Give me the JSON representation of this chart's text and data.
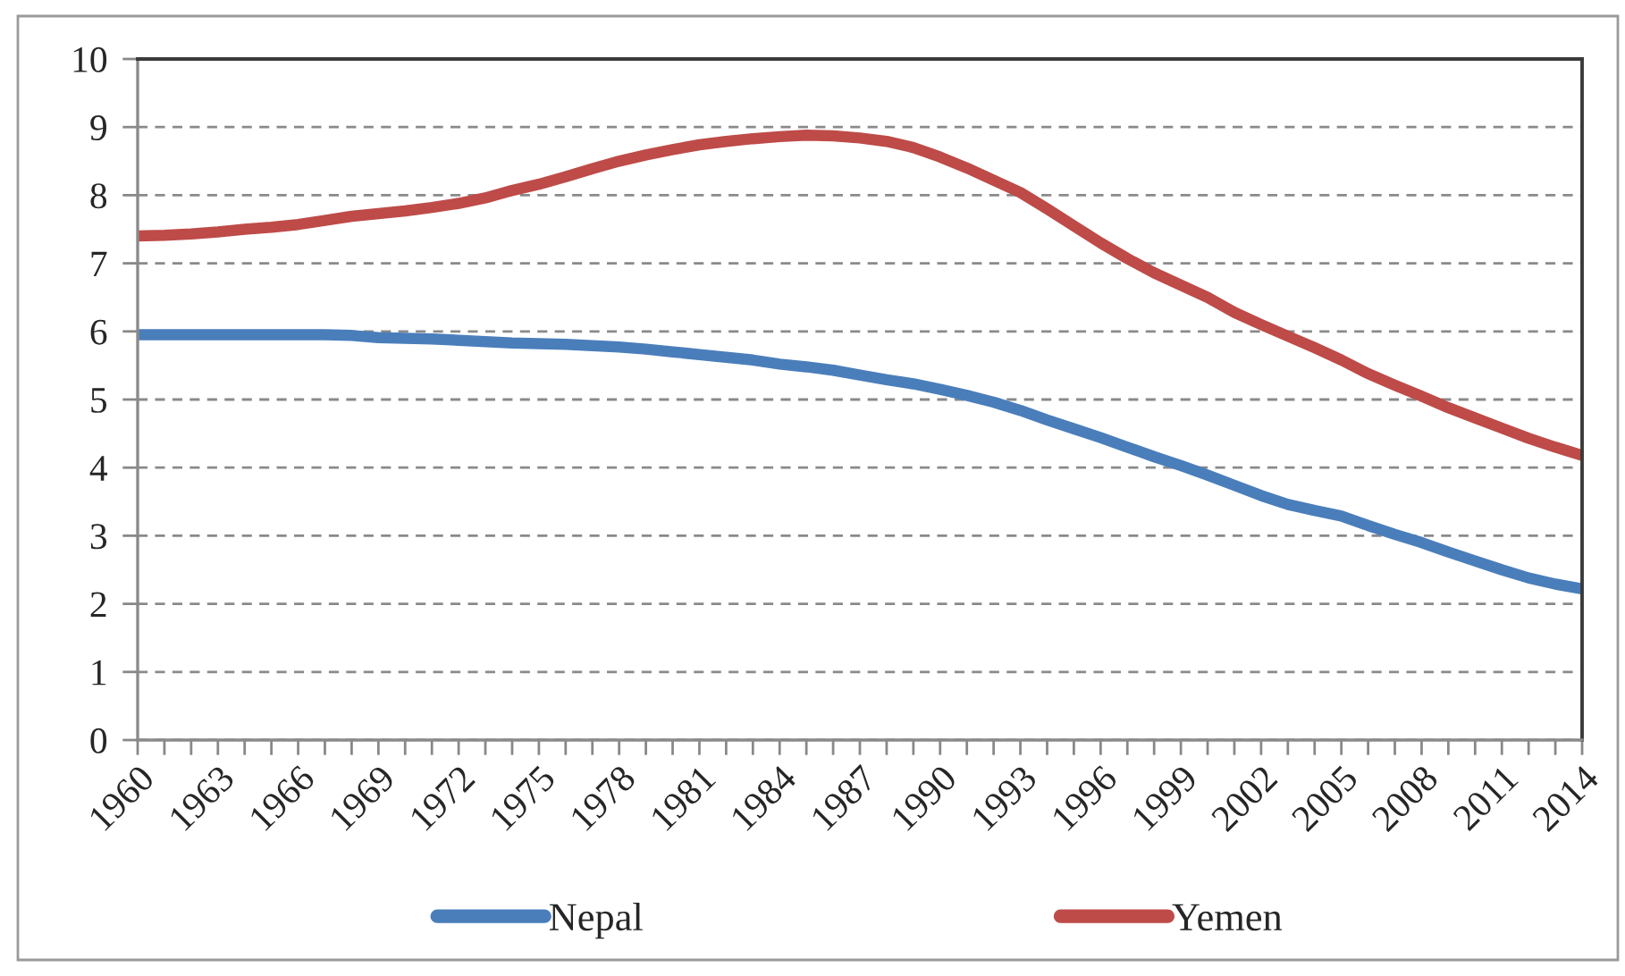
{
  "chart_data": {
    "type": "line",
    "categories": [
      "1960",
      null,
      null,
      "1963",
      null,
      null,
      "1966",
      null,
      null,
      "1969",
      null,
      null,
      "1972",
      null,
      null,
      "1975",
      null,
      null,
      "1978",
      null,
      null,
      "1981",
      null,
      null,
      "1984",
      null,
      null,
      "1987",
      null,
      null,
      "1990",
      null,
      null,
      "1993",
      null,
      null,
      "1996",
      null,
      null,
      "1999",
      null,
      null,
      "2002",
      null,
      null,
      "2005",
      null,
      null,
      "2008",
      null,
      null,
      "2011",
      null,
      null,
      "2014"
    ],
    "series": [
      {
        "name": "Nepal",
        "color": "#4a7ebb",
        "values": [
          5.95,
          5.95,
          5.95,
          5.95,
          5.95,
          5.95,
          5.95,
          5.95,
          5.94,
          5.91,
          5.9,
          5.89,
          5.87,
          5.85,
          5.83,
          5.82,
          5.81,
          5.79,
          5.77,
          5.74,
          5.7,
          5.66,
          5.62,
          5.58,
          5.52,
          5.48,
          5.43,
          5.36,
          5.29,
          5.23,
          5.15,
          5.06,
          4.96,
          4.84,
          4.7,
          4.57,
          4.44,
          4.3,
          4.16,
          4.03,
          3.89,
          3.74,
          3.59,
          3.46,
          3.37,
          3.29,
          3.15,
          3.02,
          2.9,
          2.76,
          2.63,
          2.5,
          2.38,
          2.29,
          2.22
        ]
      },
      {
        "name": "Yemen",
        "color": "#be4b48",
        "values": [
          7.4,
          7.41,
          7.43,
          7.46,
          7.5,
          7.53,
          7.57,
          7.63,
          7.69,
          7.73,
          7.77,
          7.82,
          7.88,
          7.96,
          8.07,
          8.16,
          8.27,
          8.39,
          8.5,
          8.59,
          8.67,
          8.74,
          8.79,
          8.83,
          8.86,
          8.88,
          8.87,
          8.84,
          8.79,
          8.7,
          8.56,
          8.4,
          8.22,
          8.04,
          7.8,
          7.55,
          7.3,
          7.07,
          6.86,
          6.68,
          6.5,
          6.28,
          6.1,
          5.93,
          5.76,
          5.58,
          5.38,
          5.21,
          5.05,
          4.88,
          4.73,
          4.58,
          4.43,
          4.3,
          4.18
        ]
      }
    ],
    "ylim": [
      0,
      10
    ],
    "yticks": [
      0,
      1,
      2,
      3,
      4,
      5,
      6,
      7,
      8,
      9,
      10
    ],
    "grid": "y",
    "legend": "bottom",
    "marker": "none",
    "line_style": "solid"
  }
}
